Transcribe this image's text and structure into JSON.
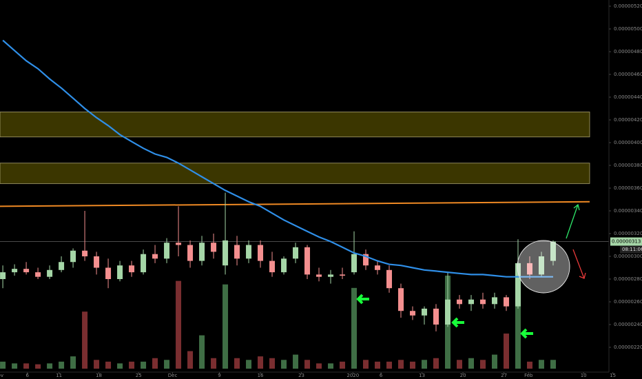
{
  "chart_data": {
    "type": "candlestick",
    "open": [
      2.8e-06,
      2.86e-06,
      2.89e-06,
      2.86e-06,
      2.82e-06,
      2.88e-06,
      2.95e-06,
      3.05e-06,
      3e-06,
      2.9e-06,
      2.8e-06,
      2.92e-06,
      2.86e-06,
      3.02e-06,
      2.98e-06,
      3.12e-06,
      3.1e-06,
      2.96e-06,
      3.12e-06,
      2.92e-06,
      3.1e-06,
      2.98e-06,
      3.1e-06,
      2.96e-06,
      2.86e-06,
      2.98e-06,
      3.08e-06,
      2.84e-06,
      2.82e-06,
      2.84e-06,
      2.86e-06,
      3.02e-06,
      2.92e-06,
      2.88e-06,
      2.72e-06,
      2.52e-06,
      2.48e-06,
      2.54e-06,
      2.4e-06,
      2.62e-06,
      2.58e-06,
      2.62e-06,
      2.58e-06,
      2.64e-06,
      2.56e-06,
      2.94e-06,
      2.84e-06,
      2.96e-06
    ],
    "high": [
      2.92e-06,
      2.93e-06,
      2.95e-06,
      2.9e-06,
      2.92e-06,
      3e-06,
      3.07e-06,
      3.4e-06,
      3.04e-06,
      2.98e-06,
      2.96e-06,
      2.96e-06,
      3.06e-06,
      3.1e-06,
      3.16e-06,
      3.44e-06,
      3.14e-06,
      3.18e-06,
      3.2e-06,
      3.56e-06,
      3.18e-06,
      3.14e-06,
      3.14e-06,
      3.04e-06,
      3e-06,
      3.12e-06,
      3.1e-06,
      2.9e-06,
      2.88e-06,
      2.9e-06,
      3.22e-06,
      3.06e-06,
      2.96e-06,
      2.92e-06,
      2.76e-06,
      2.56e-06,
      2.56e-06,
      2.58e-06,
      2.86e-06,
      2.66e-06,
      2.66e-06,
      2.68e-06,
      2.68e-06,
      2.66e-06,
      3.15e-06,
      3e-06,
      3.04e-06,
      3.14e-06
    ],
    "low": [
      2.72e-06,
      2.83e-06,
      2.84e-06,
      2.8e-06,
      2.8e-06,
      2.86e-06,
      2.9e-06,
      2.96e-06,
      2.84e-06,
      2.72e-06,
      2.78e-06,
      2.82e-06,
      2.84e-06,
      2.94e-06,
      2.94e-06,
      3e-06,
      2.9e-06,
      2.92e-06,
      2.98e-06,
      2.84e-06,
      2.92e-06,
      2.94e-06,
      2.9e-06,
      2.82e-06,
      2.84e-06,
      2.94e-06,
      2.8e-06,
      2.78e-06,
      2.76e-06,
      2.8e-06,
      2.84e-06,
      2.88e-06,
      2.84e-06,
      2.68e-06,
      2.46e-06,
      2.44e-06,
      2.4e-06,
      2.34e-06,
      2.38e-06,
      2.54e-06,
      2.52e-06,
      2.54e-06,
      2.54e-06,
      2.52e-06,
      2.54e-06,
      2.8e-06,
      2.82e-06,
      2.92e-06
    ],
    "close": [
      2.86e-06,
      2.89e-06,
      2.86e-06,
      2.82e-06,
      2.88e-06,
      2.95e-06,
      3.05e-06,
      3e-06,
      2.9e-06,
      2.8e-06,
      2.92e-06,
      2.86e-06,
      3.02e-06,
      2.98e-06,
      3.12e-06,
      3.1e-06,
      2.96e-06,
      3.12e-06,
      3.04e-06,
      3.14e-06,
      2.98e-06,
      3.1e-06,
      2.96e-06,
      2.86e-06,
      2.98e-06,
      3.08e-06,
      2.84e-06,
      2.82e-06,
      2.84e-06,
      2.83e-06,
      3.02e-06,
      2.92e-06,
      2.88e-06,
      2.72e-06,
      2.52e-06,
      2.48e-06,
      2.54e-06,
      2.4e-06,
      2.62e-06,
      2.58e-06,
      2.62e-06,
      2.58e-06,
      2.64e-06,
      2.56e-06,
      2.94e-06,
      2.84e-06,
      3e-06,
      3.13e-06
    ],
    "volume": [
      8,
      6,
      6,
      5,
      6,
      8,
      14,
      65,
      10,
      8,
      6,
      8,
      8,
      12,
      10,
      100,
      20,
      38,
      12,
      96,
      12,
      10,
      14,
      12,
      10,
      16,
      10,
      6,
      6,
      8,
      92,
      10,
      8,
      8,
      10,
      8,
      10,
      12,
      106,
      10,
      12,
      10,
      16,
      40,
      96,
      8,
      10,
      10
    ],
    "ma_values": [
      4.9e-06,
      4.81e-06,
      4.72e-06,
      4.65e-06,
      4.56e-06,
      4.48e-06,
      4.39e-06,
      4.3e-06,
      4.22e-06,
      4.15e-06,
      4.07e-06,
      4.01e-06,
      3.95e-06,
      3.9e-06,
      3.87e-06,
      3.82e-06,
      3.76e-06,
      3.7e-06,
      3.64e-06,
      3.58e-06,
      3.53e-06,
      3.48e-06,
      3.44e-06,
      3.38e-06,
      3.32e-06,
      3.27e-06,
      3.22e-06,
      3.17e-06,
      3.13e-06,
      3.08e-06,
      3.03e-06,
      3e-06,
      2.96e-06,
      2.93e-06,
      2.92e-06,
      2.9e-06,
      2.88e-06,
      2.87e-06,
      2.86e-06,
      2.85e-06,
      2.84e-06,
      2.84e-06,
      2.83e-06,
      2.82e-06,
      2.82e-06,
      2.82e-06,
      2.82e-06,
      2.82e-06
    ],
    "ma_color": "#2f8fe8",
    "up_color": "#a5d6a7",
    "down_color": "#f48f8f",
    "volume_up_color": "#3f6e45",
    "volume_down_color": "#7a2e30",
    "zones": [
      {
        "low": 4.05e-06,
        "high": 4.27e-06
      },
      {
        "low": 3.64e-06,
        "high": 3.82e-06
      }
    ],
    "zone_color": "#3b3600",
    "trend_line": [
      3.44e-06,
      3.48e-06
    ],
    "trend_color": "#f08a24",
    "last_price": {
      "value": 3.13e-06,
      "label": "0.00000313"
    },
    "countdown": "08:11:06",
    "xlim": [
      -0.24,
      54.59
    ],
    "xticks": [
      {
        "value": -0.35,
        "label": "Nov"
      },
      {
        "value": 2.1,
        "label": "6"
      },
      {
        "value": 4.8,
        "label": "11"
      },
      {
        "value": 8.2,
        "label": "18"
      },
      {
        "value": 11.6,
        "label": "25"
      },
      {
        "value": 14.5,
        "label": "Dec"
      },
      {
        "value": 18.5,
        "label": "9"
      },
      {
        "value": 22.0,
        "label": "16"
      },
      {
        "value": 25.5,
        "label": "23"
      },
      {
        "value": 29.9,
        "label": "2020"
      },
      {
        "value": 32.3,
        "label": "6"
      },
      {
        "value": 35.8,
        "label": "13"
      },
      {
        "value": 39.3,
        "label": "20"
      },
      {
        "value": 42.8,
        "label": "27"
      },
      {
        "value": 44.9,
        "label": "Feb"
      },
      {
        "value": 49.6,
        "label": "10"
      },
      {
        "value": 52.1,
        "label": "15"
      }
    ],
    "ylim": [
      2e-06,
      5.2e-06
    ],
    "yticks": [
      {
        "value": 2.2e-06,
        "label": "0.00000220"
      },
      {
        "value": 2.4e-06,
        "label": "0.00000240"
      },
      {
        "value": 2.6e-06,
        "label": "0.00000260"
      },
      {
        "value": 2.8e-06,
        "label": "0.00000280"
      },
      {
        "value": 3e-06,
        "label": "0.00000300"
      },
      {
        "value": 3.2e-06,
        "label": "0.00000320"
      },
      {
        "value": 3.4e-06,
        "label": "0.00000340"
      },
      {
        "value": 3.6e-06,
        "label": "0.00000360"
      },
      {
        "value": 3.8e-06,
        "label": "0.00000380"
      },
      {
        "value": 4e-06,
        "label": "0.00000400"
      },
      {
        "value": 4.2e-06,
        "label": "0.00000420"
      },
      {
        "value": 4.4e-06,
        "label": "0.00000440"
      },
      {
        "value": 4.6e-06,
        "label": "0.00000460"
      },
      {
        "value": 4.8e-06,
        "label": "0.00000480"
      },
      {
        "value": 5e-06,
        "label": "0.00000500"
      },
      {
        "value": 5.2e-06,
        "label": "0.00000520"
      }
    ]
  }
}
